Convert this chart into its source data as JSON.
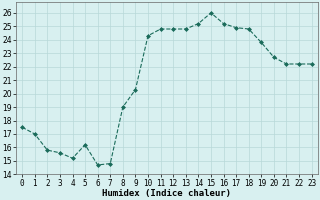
{
  "x": [
    0,
    1,
    2,
    3,
    4,
    5,
    6,
    7,
    8,
    9,
    10,
    11,
    12,
    13,
    14,
    15,
    16,
    17,
    18,
    19,
    20,
    21,
    22,
    23
  ],
  "y": [
    17.5,
    17.0,
    15.8,
    15.6,
    15.2,
    16.2,
    14.7,
    14.8,
    19.0,
    20.3,
    24.3,
    24.8,
    24.8,
    24.8,
    25.2,
    26.0,
    25.2,
    24.9,
    24.8,
    23.8,
    22.7,
    22.2,
    22.2,
    22.2
  ],
  "line_color": "#1a6b5a",
  "marker": "D",
  "marker_size": 2.0,
  "bg_color": "#d8f0f0",
  "grid_color": "#b8d8d8",
  "xlabel": "Humidex (Indice chaleur)",
  "ylim": [
    14,
    26.8
  ],
  "xlim": [
    -0.5,
    23.5
  ],
  "yticks": [
    14,
    15,
    16,
    17,
    18,
    19,
    20,
    21,
    22,
    23,
    24,
    25,
    26
  ],
  "xticks": [
    0,
    1,
    2,
    3,
    4,
    5,
    6,
    7,
    8,
    9,
    10,
    11,
    12,
    13,
    14,
    15,
    16,
    17,
    18,
    19,
    20,
    21,
    22,
    23
  ],
  "tick_fontsize": 5.5,
  "xlabel_fontsize": 6.5
}
